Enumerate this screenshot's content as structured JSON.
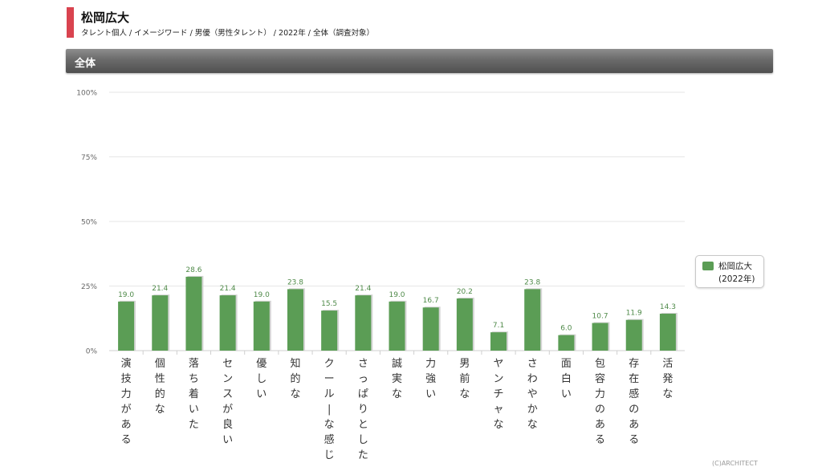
{
  "header": {
    "talent_name": "松岡広大",
    "breadcrumb": "タレント個人 / イメージワード / 男優（男性タレント） / 2022年 / 全体（調査対象）"
  },
  "section": {
    "title": "全体"
  },
  "legend": {
    "name": "松岡広大",
    "year": "(2022年)"
  },
  "credit": "(C)ARCHITECT",
  "colors": {
    "accent": "#d9434f",
    "bar": "#5b9d55",
    "value_label": "#4f8a49",
    "header_bg": "#6a6a6a"
  },
  "chart_data": {
    "type": "bar",
    "categories": [
      "演技力がある",
      "個性的な",
      "落ち着いた",
      "センスが良い",
      "優しい",
      "知的な",
      "クール な感じ",
      "さっぱりとした",
      "誠実な",
      "力強い",
      "男前な",
      "ヤンチャな",
      "さわやかな",
      "面白い",
      "包容力のある",
      "存在感のある",
      "活発な"
    ],
    "series": [
      {
        "name": "松岡広大 (2022年)",
        "values": [
          19.0,
          21.4,
          28.6,
          21.4,
          19.0,
          23.8,
          15.5,
          21.4,
          19.0,
          16.7,
          20.2,
          7.1,
          23.8,
          6.0,
          10.7,
          11.9,
          14.3
        ]
      }
    ],
    "value_labels": [
      "19.0",
      "21.4",
      "28.6",
      "21.4",
      "19.0",
      "23.8",
      "15.5",
      "21.4",
      "19.0",
      "16.7",
      "20.2",
      "7.1",
      "23.8",
      "6.0",
      "10.7",
      "11.9",
      "14.3"
    ],
    "ylim": [
      0,
      100
    ],
    "yticks": [
      "0%",
      "25%",
      "50%",
      "75%",
      "100%"
    ],
    "grid": true,
    "legend_position": "right"
  }
}
